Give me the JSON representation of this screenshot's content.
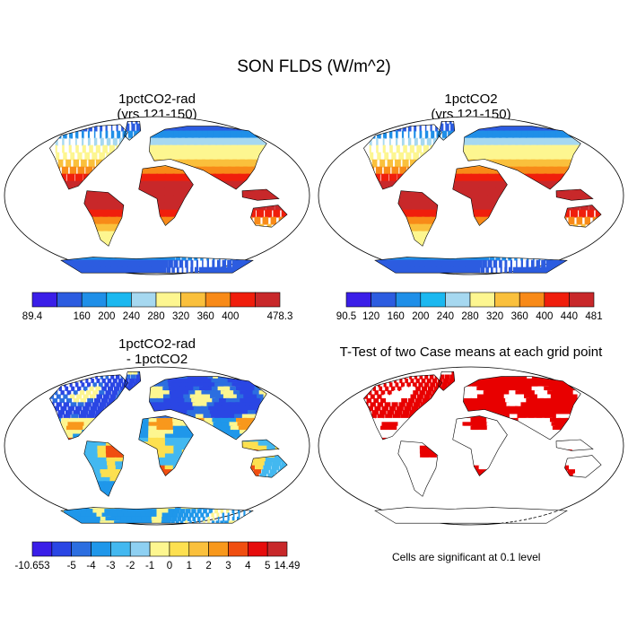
{
  "figure": {
    "title": "SON FLDS (W/m^2)"
  },
  "panels": [
    {
      "id": "p1",
      "title": "1pctCO2-rad",
      "subtitle": "(yrs 121-150)",
      "colorbar": {
        "colors": [
          "#3a1ee8",
          "#2c5ce0",
          "#1f8fe8",
          "#1bb8f0",
          "#a6d8f0",
          "#fdf690",
          "#fac03c",
          "#f88a18",
          "#f01e0c",
          "#c8282a"
        ],
        "labels": [
          "89.4",
          "160",
          "200",
          "240",
          "280",
          "320",
          "360",
          "400",
          "478.3"
        ]
      }
    },
    {
      "id": "p2",
      "title": "1pctCO2",
      "subtitle": "(yrs 121-150)",
      "colorbar": {
        "colors": [
          "#3a1ee8",
          "#2c5ce0",
          "#1f8fe8",
          "#1bb8f0",
          "#a6d8f0",
          "#fdf690",
          "#fac03c",
          "#f88a18",
          "#f01e0c",
          "#c8282a"
        ],
        "labels": [
          "90.5",
          "120",
          "160",
          "200",
          "240",
          "280",
          "320",
          "360",
          "400",
          "440",
          "481"
        ]
      }
    },
    {
      "id": "p3",
      "title": "1pctCO2-rad",
      "subtitle": "- 1pctCO2",
      "colorbar": {
        "colors": [
          "#3a1ee8",
          "#2a46e4",
          "#2c6ee0",
          "#1f97ea",
          "#43b8f0",
          "#8ed0f2",
          "#fdf690",
          "#fde050",
          "#fac03c",
          "#f8981c",
          "#f04e10",
          "#e60c0c",
          "#c8282a"
        ],
        "labels": [
          "-10.653",
          "-5",
          "-4",
          "-3",
          "-2",
          "-1",
          "0",
          "1",
          "2",
          "3",
          "4",
          "5",
          "14.49"
        ]
      }
    },
    {
      "id": "p4",
      "title": "T-Test of two Case means at each grid point",
      "note": "Cells are significant at 0.1 level",
      "significant_color": "#e80000"
    }
  ]
}
